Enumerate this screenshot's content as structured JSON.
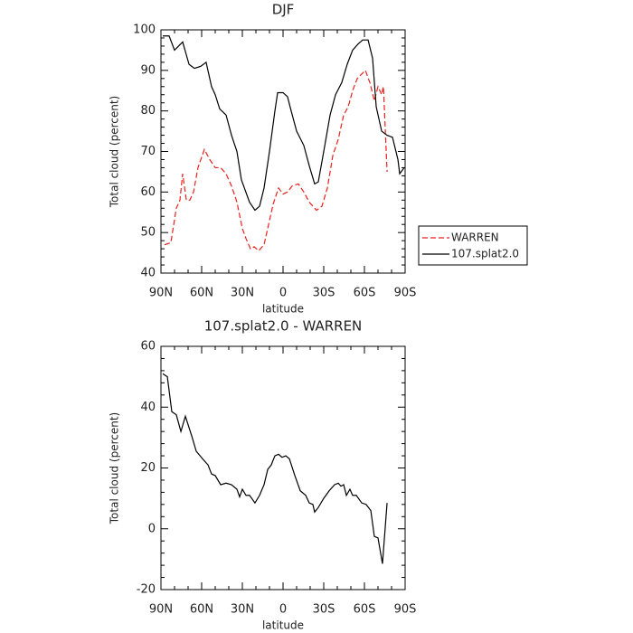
{
  "chart_data": [
    {
      "type": "line",
      "title": "DJF",
      "xlabel": "latitude",
      "ylabel": "Total cloud (percent)",
      "xlim": [
        90,
        -90
      ],
      "xticks": [
        {
          "value": 90,
          "label": "90N"
        },
        {
          "value": 60,
          "label": "60N"
        },
        {
          "value": 30,
          "label": "30N"
        },
        0,
        {
          "value": -30,
          "label": "30S"
        },
        {
          "value": -60,
          "label": "60S"
        },
        {
          "value": -90,
          "label": "90S"
        }
      ],
      "ylim": [
        40,
        100
      ],
      "yticks": [
        40,
        50,
        60,
        70,
        80,
        90,
        100
      ],
      "legend": "right",
      "series": [
        {
          "name": "WARREN",
          "color": "#e8221e",
          "linestyle": "dashed",
          "x": [
            87.3,
            82.7,
            78.7,
            76,
            74,
            71.3,
            68.7,
            66,
            62.7,
            58,
            54,
            50,
            46,
            42,
            38,
            34,
            30,
            27.3,
            24,
            21.3,
            18,
            14,
            11.3,
            7.3,
            3.3,
            0,
            -3.3,
            -6.7,
            -11.3,
            -15.3,
            -19.3,
            -24.7,
            -28.7,
            -32.7,
            -36.7,
            -40.7,
            -44.7,
            -48,
            -51.3,
            -54.7,
            -60.7,
            -64,
            -67.3,
            -70,
            -72.7,
            -74,
            -76.7
          ],
          "values": [
            47,
            47.5,
            56,
            58,
            64.5,
            58,
            58,
            60,
            66,
            70.5,
            68,
            66,
            66,
            64.5,
            61.5,
            57.5,
            51,
            48.5,
            46,
            46.5,
            45.5,
            47,
            51,
            57,
            61,
            59.5,
            60,
            61.5,
            62,
            60,
            57.5,
            55.5,
            56.5,
            61,
            69,
            73,
            79,
            81,
            85,
            88,
            90,
            87,
            82.5,
            86,
            84,
            86,
            65
          ]
        },
        {
          "name": "107.splat2.0",
          "color": "#000000",
          "linestyle": "solid",
          "x": [
            88.7,
            84,
            80,
            74,
            69.3,
            65.3,
            60.7,
            56.7,
            52.7,
            50,
            46.7,
            42,
            38,
            34,
            30.7,
            24.7,
            20.7,
            17.3,
            14,
            10,
            6,
            4,
            0,
            -3.3,
            -6,
            -10,
            -15.3,
            -19.3,
            -23.3,
            -26,
            -30,
            -34.7,
            -38.7,
            -43.3,
            -47.3,
            -51.3,
            -55.3,
            -58.7,
            -62.7,
            -66,
            -68.7,
            -72.7,
            -76.7,
            -80.7,
            -84.7,
            -86,
            -89.3
          ],
          "values": [
            98.5,
            98.5,
            95,
            97,
            91.5,
            90.5,
            91,
            92,
            86,
            84,
            80.5,
            79,
            74,
            70,
            63,
            57.5,
            55.5,
            56.5,
            61,
            70,
            80,
            84.5,
            84.5,
            83.5,
            80,
            75,
            71.5,
            66.5,
            62,
            62.5,
            70,
            79,
            84,
            87,
            91.5,
            95,
            96.5,
            97.5,
            97.5,
            93,
            81,
            75,
            74,
            73.5,
            68,
            64.5,
            66
          ]
        }
      ]
    },
    {
      "type": "line",
      "title": "107.splat2.0 - WARREN",
      "xlabel": "latitude",
      "ylabel": "Total cloud (percent)",
      "xlim": [
        90,
        -90
      ],
      "xticks": [
        {
          "value": 90,
          "label": "90N"
        },
        {
          "value": 60,
          "label": "60N"
        },
        {
          "value": 30,
          "label": "30N"
        },
        0,
        {
          "value": -30,
          "label": "30S"
        },
        {
          "value": -60,
          "label": "60S"
        },
        {
          "value": -90,
          "label": "90S"
        }
      ],
      "ylim": [
        -20,
        60
      ],
      "yticks": [
        -20,
        0,
        20,
        40,
        60
      ],
      "series": [
        {
          "color": "#000000",
          "linestyle": "solid",
          "x": [
            88.7,
            85.3,
            82,
            78.7,
            75.3,
            72,
            67.3,
            64,
            59.3,
            55.3,
            52.7,
            50,
            46,
            42,
            38,
            34,
            32,
            30,
            27.3,
            24.7,
            20.7,
            17.3,
            14,
            11.3,
            8.7,
            6,
            3.3,
            0.7,
            -2,
            -4.7,
            -8.7,
            -12.7,
            -16.7,
            -19.3,
            -22,
            -23.3,
            -26,
            -30,
            -34,
            -38,
            -40.7,
            -42.7,
            -44.7,
            -46.7,
            -49.3,
            -51.3,
            -54,
            -58,
            -61.3,
            -64.7,
            -67.3,
            -70,
            -73.3,
            -76.7
          ],
          "values": [
            51,
            50,
            38.5,
            37.5,
            32,
            37,
            30.5,
            25.5,
            23,
            21,
            18,
            17.5,
            14.5,
            15,
            14.5,
            13,
            10.5,
            13,
            11,
            11,
            8.5,
            11,
            14.5,
            19.5,
            21,
            24,
            24.5,
            23.5,
            24,
            23,
            17.5,
            12.5,
            11,
            8.5,
            8,
            5.5,
            7,
            10,
            12.5,
            14.5,
            15,
            14,
            14.5,
            11,
            13,
            11,
            11,
            8.5,
            8,
            6,
            -2.5,
            -3,
            -11.5,
            8.5
          ]
        }
      ]
    }
  ]
}
